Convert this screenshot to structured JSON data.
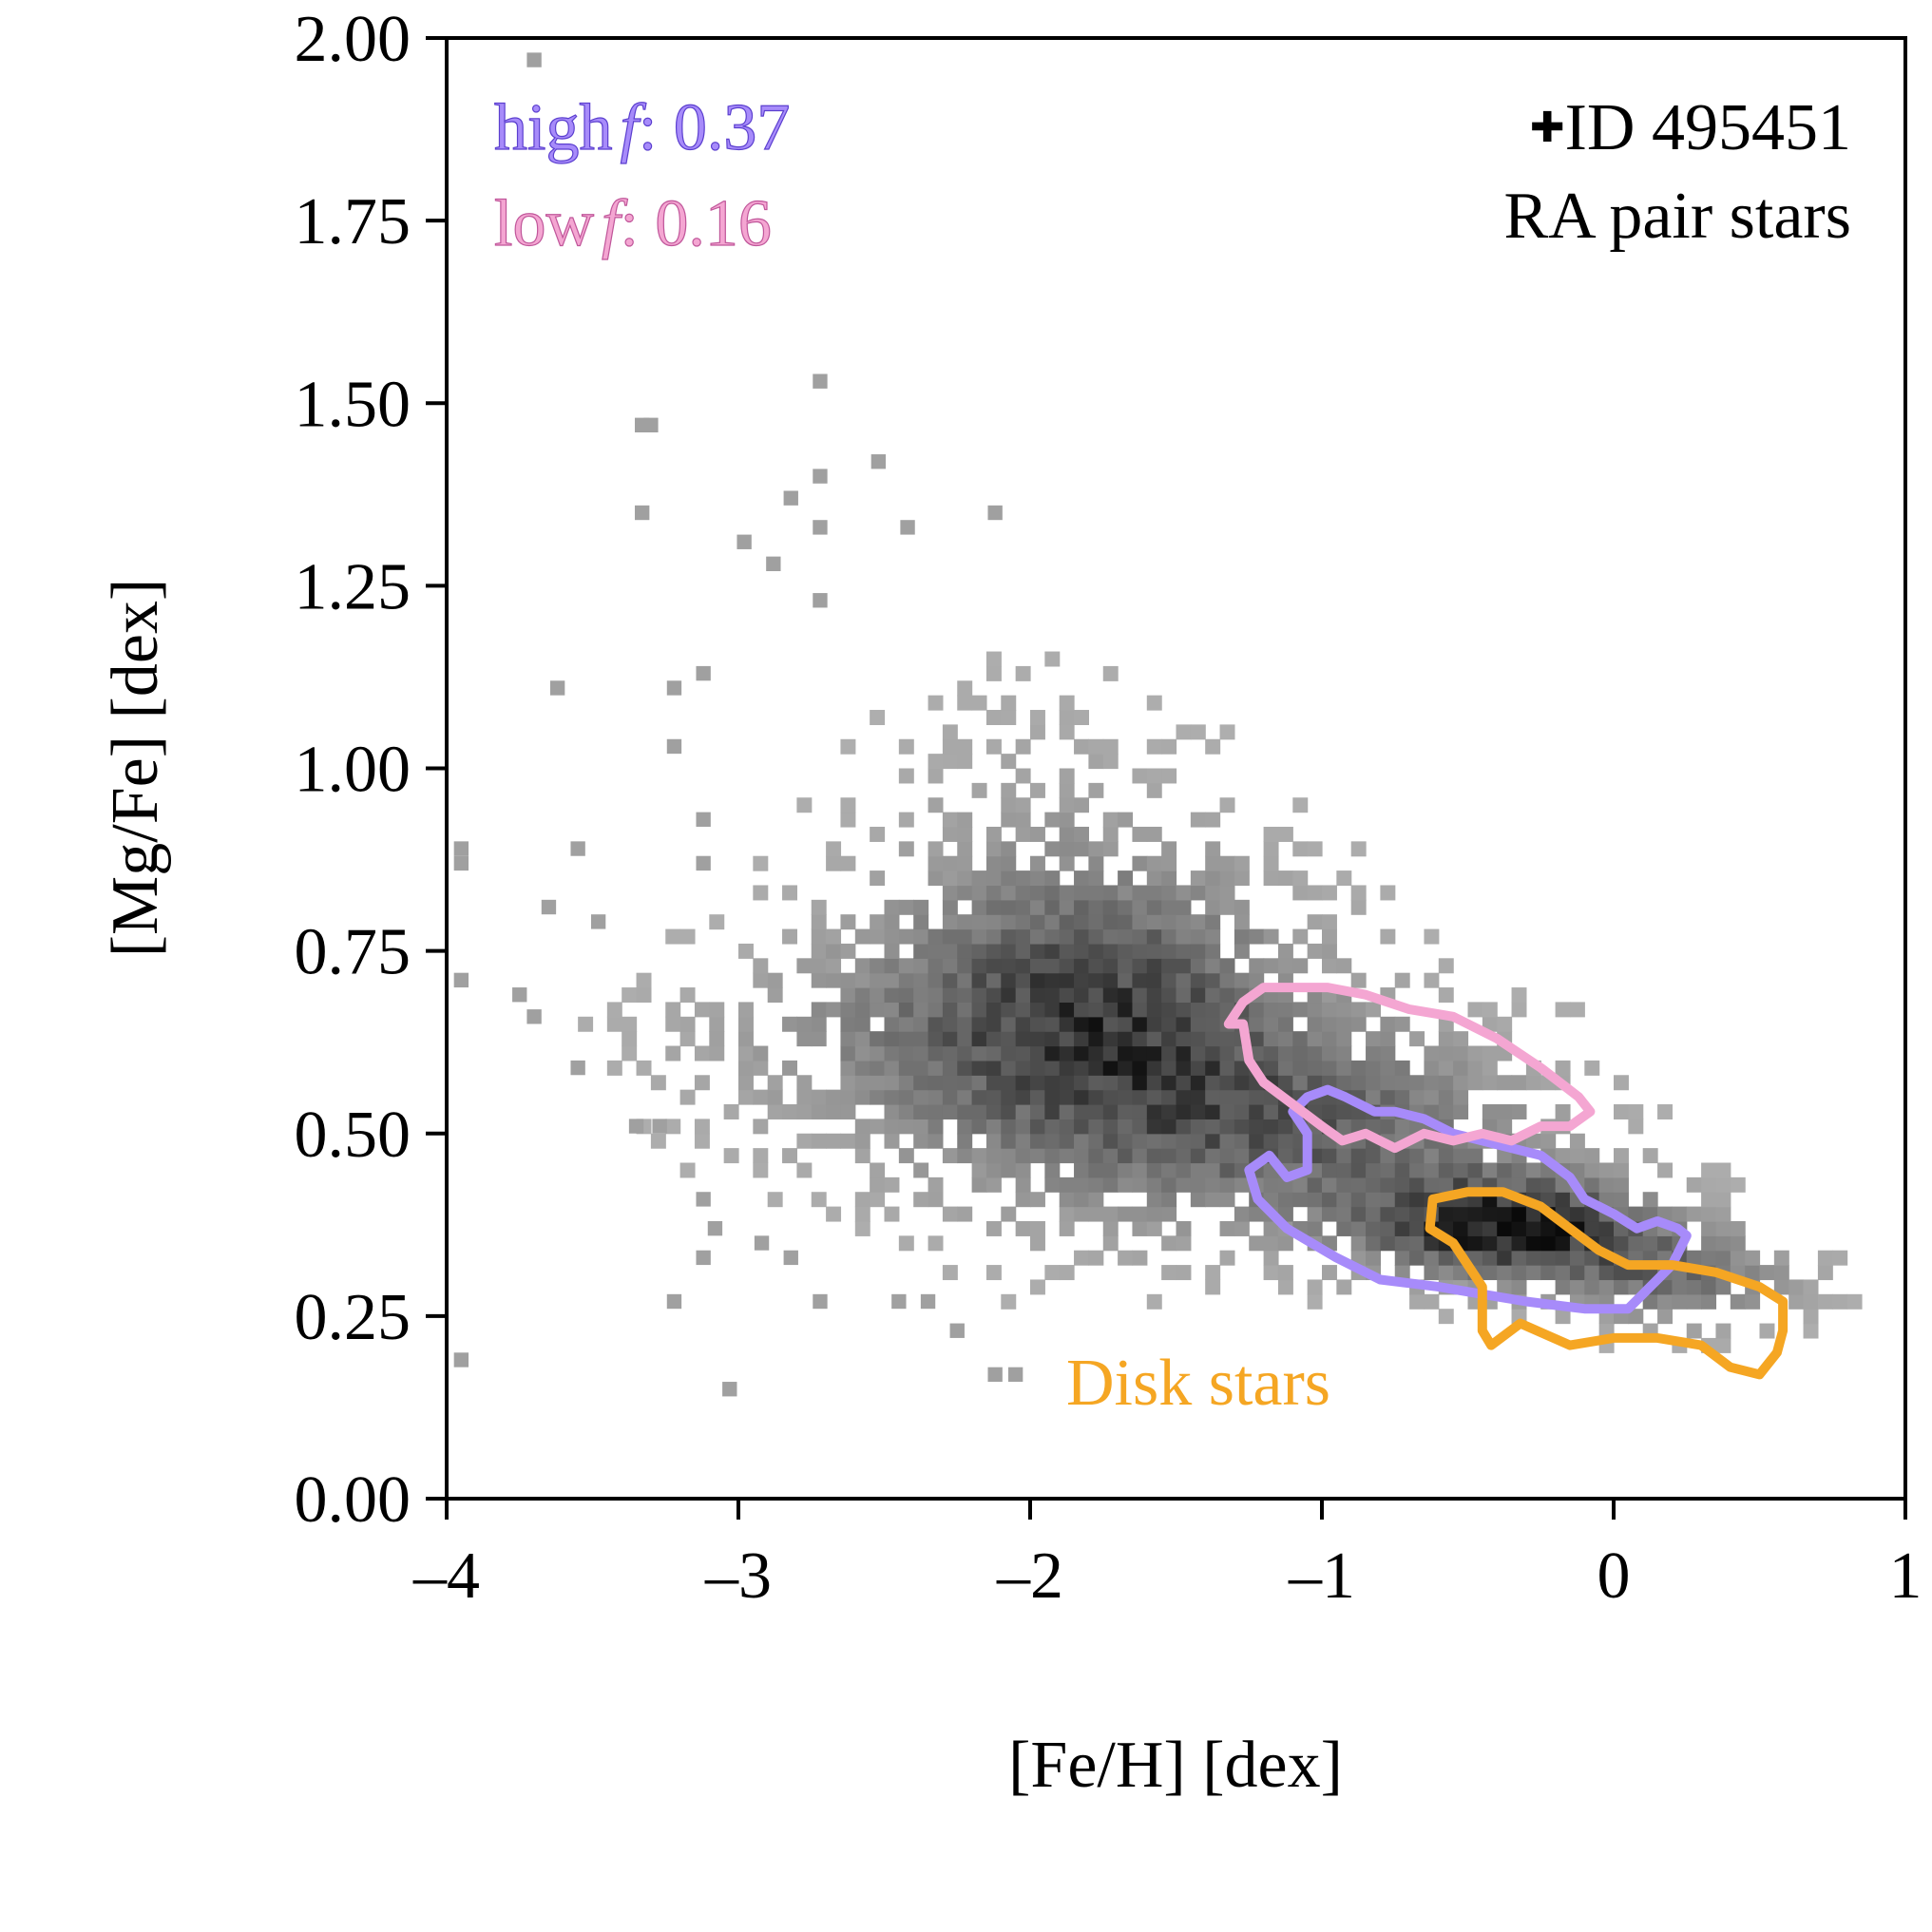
{
  "chart_data": {
    "type": "heatmap",
    "title": "",
    "xlabel": "[Fe/H] [dex]",
    "ylabel": "[Mg/Fe] [dex]",
    "xlim": [
      -4,
      1
    ],
    "ylim": [
      0.0,
      2.0
    ],
    "x_ticks": [
      -4,
      -3,
      -2,
      -1,
      0,
      1
    ],
    "x_tick_labels": [
      "–4",
      "–3",
      "–2",
      "–1",
      "0",
      "1"
    ],
    "y_ticks": [
      0.0,
      0.25,
      0.5,
      0.75,
      1.0,
      1.25,
      1.5,
      1.75,
      2.0
    ],
    "y_tick_labels": [
      "0.00",
      "0.25",
      "0.50",
      "0.75",
      "1.00",
      "1.25",
      "1.50",
      "1.75",
      "2.00"
    ],
    "grid": false,
    "histogram": {
      "description_series": "RA pair stars",
      "bin_width_feh": 0.05,
      "bin_width_mgfe": 0.02,
      "colormap": "greys",
      "density_peak": {
        "feh": -0.35,
        "mgfe": 0.36
      },
      "outlier_bins": [
        {
          "feh": -3.7,
          "mgfe": 1.97
        },
        {
          "feh": -2.72,
          "mgfe": 1.53
        },
        {
          "feh": -3.3,
          "mgfe": 1.47
        },
        {
          "feh": -3.33,
          "mgfe": 1.47
        },
        {
          "feh": -2.72,
          "mgfe": 1.4
        },
        {
          "feh": -2.52,
          "mgfe": 1.42
        },
        {
          "feh": -2.82,
          "mgfe": 1.37
        },
        {
          "feh": -3.33,
          "mgfe": 1.35
        },
        {
          "feh": -2.12,
          "mgfe": 1.35
        },
        {
          "feh": -2.72,
          "mgfe": 1.33
        },
        {
          "feh": -2.42,
          "mgfe": 1.33
        },
        {
          "feh": -2.98,
          "mgfe": 1.31
        },
        {
          "feh": -2.88,
          "mgfe": 1.28
        },
        {
          "feh": -2.72,
          "mgfe": 1.23
        },
        {
          "feh": -3.62,
          "mgfe": 1.11
        },
        {
          "feh": -3.22,
          "mgfe": 1.11
        },
        {
          "feh": -3.12,
          "mgfe": 1.13
        },
        {
          "feh": -3.22,
          "mgfe": 1.03
        },
        {
          "feh": -3.12,
          "mgfe": 0.93
        },
        {
          "feh": -3.95,
          "mgfe": 0.89
        },
        {
          "feh": -3.95,
          "mgfe": 0.87
        },
        {
          "feh": -3.55,
          "mgfe": 0.89
        },
        {
          "feh": -3.12,
          "mgfe": 0.87
        },
        {
          "feh": -3.65,
          "mgfe": 0.81
        },
        {
          "feh": -3.48,
          "mgfe": 0.79
        },
        {
          "feh": -3.95,
          "mgfe": 0.71
        },
        {
          "feh": -3.75,
          "mgfe": 0.69
        },
        {
          "feh": -3.7,
          "mgfe": 0.66
        },
        {
          "feh": -3.55,
          "mgfe": 0.59
        },
        {
          "feh": -3.35,
          "mgfe": 0.51
        },
        {
          "feh": -3.27,
          "mgfe": 0.51
        },
        {
          "feh": -3.12,
          "mgfe": 0.41
        },
        {
          "feh": -3.08,
          "mgfe": 0.37
        },
        {
          "feh": -3.12,
          "mgfe": 0.33
        },
        {
          "feh": -3.22,
          "mgfe": 0.27
        },
        {
          "feh": -2.72,
          "mgfe": 0.27
        },
        {
          "feh": -2.45,
          "mgfe": 0.27
        },
        {
          "feh": -2.35,
          "mgfe": 0.27
        },
        {
          "feh": -2.25,
          "mgfe": 0.23
        },
        {
          "feh": -3.03,
          "mgfe": 0.15
        },
        {
          "feh": -3.95,
          "mgfe": 0.19
        },
        {
          "feh": -2.12,
          "mgfe": 0.17
        },
        {
          "feh": -2.05,
          "mgfe": 0.17
        },
        {
          "feh": -2.92,
          "mgfe": 0.35
        },
        {
          "feh": -2.82,
          "mgfe": 0.33
        }
      ],
      "cloud_components": [
        {
          "center_feh": -1.8,
          "center_mgfe": 0.65,
          "spread_feh": 0.55,
          "spread_mgfe": 0.16,
          "weight": 0.9
        },
        {
          "center_feh": -0.9,
          "center_mgfe": 0.5,
          "spread_feh": 0.55,
          "spread_mgfe": 0.1,
          "weight": 0.55
        },
        {
          "center_feh": -0.35,
          "center_mgfe": 0.37,
          "spread_feh": 0.35,
          "spread_mgfe": 0.05,
          "weight": 1.0
        },
        {
          "center_feh": 0.25,
          "center_mgfe": 0.3,
          "spread_feh": 0.3,
          "spread_mgfe": 0.05,
          "weight": 0.55
        },
        {
          "center_feh": -2.8,
          "center_mgfe": 0.62,
          "spread_feh": 0.5,
          "spread_mgfe": 0.1,
          "weight": 0.18
        },
        {
          "center_feh": -2.0,
          "center_mgfe": 0.98,
          "spread_feh": 0.4,
          "spread_mgfe": 0.15,
          "weight": 0.12
        }
      ]
    },
    "series": [
      {
        "name": "high f",
        "color": "#a78bfa",
        "type": "contour",
        "points": [
          [
            -1.25,
            0.45
          ],
          [
            -1.22,
            0.41
          ],
          [
            -1.12,
            0.37
          ],
          [
            -0.95,
            0.33
          ],
          [
            -0.8,
            0.3
          ],
          [
            -0.6,
            0.29
          ],
          [
            -0.45,
            0.28
          ],
          [
            -0.3,
            0.27
          ],
          [
            -0.1,
            0.26
          ],
          [
            0.05,
            0.26
          ],
          [
            0.1,
            0.28
          ],
          [
            0.2,
            0.32
          ],
          [
            0.25,
            0.36
          ],
          [
            0.22,
            0.37
          ],
          [
            0.15,
            0.38
          ],
          [
            0.08,
            0.37
          ],
          [
            0.0,
            0.39
          ],
          [
            -0.1,
            0.41
          ],
          [
            -0.15,
            0.44
          ],
          [
            -0.25,
            0.47
          ],
          [
            -0.35,
            0.48
          ],
          [
            -0.45,
            0.49
          ],
          [
            -0.55,
            0.5
          ],
          [
            -0.65,
            0.52
          ],
          [
            -0.75,
            0.53
          ],
          [
            -0.82,
            0.53
          ],
          [
            -0.92,
            0.55
          ],
          [
            -0.98,
            0.56
          ],
          [
            -1.05,
            0.55
          ],
          [
            -1.1,
            0.53
          ],
          [
            -1.05,
            0.5
          ],
          [
            -1.05,
            0.45
          ],
          [
            -1.12,
            0.44
          ],
          [
            -1.18,
            0.47
          ],
          [
            -1.25,
            0.45
          ]
        ]
      },
      {
        "name": "low f",
        "color": "#f4a6d2",
        "type": "contour",
        "points": [
          [
            -1.32,
            0.65
          ],
          [
            -1.27,
            0.65
          ],
          [
            -1.25,
            0.6
          ],
          [
            -1.2,
            0.57
          ],
          [
            -1.1,
            0.54
          ],
          [
            -1.0,
            0.51
          ],
          [
            -0.93,
            0.49
          ],
          [
            -0.85,
            0.5
          ],
          [
            -0.75,
            0.48
          ],
          [
            -0.65,
            0.5
          ],
          [
            -0.55,
            0.49
          ],
          [
            -0.45,
            0.5
          ],
          [
            -0.35,
            0.49
          ],
          [
            -0.25,
            0.51
          ],
          [
            -0.15,
            0.51
          ],
          [
            -0.08,
            0.53
          ],
          [
            -0.12,
            0.55
          ],
          [
            -0.25,
            0.59
          ],
          [
            -0.4,
            0.63
          ],
          [
            -0.55,
            0.66
          ],
          [
            -0.7,
            0.67
          ],
          [
            -0.85,
            0.69
          ],
          [
            -0.98,
            0.7
          ],
          [
            -1.05,
            0.7
          ],
          [
            -1.12,
            0.7
          ],
          [
            -1.2,
            0.7
          ],
          [
            -1.27,
            0.68
          ],
          [
            -1.32,
            0.65
          ]
        ]
      },
      {
        "name": "Disk stars",
        "color": "#f5a623",
        "type": "contour",
        "points": [
          [
            -0.62,
            0.41
          ],
          [
            -0.5,
            0.42
          ],
          [
            -0.38,
            0.42
          ],
          [
            -0.25,
            0.4
          ],
          [
            -0.15,
            0.37
          ],
          [
            -0.05,
            0.34
          ],
          [
            0.05,
            0.32
          ],
          [
            0.2,
            0.32
          ],
          [
            0.35,
            0.31
          ],
          [
            0.5,
            0.29
          ],
          [
            0.58,
            0.27
          ],
          [
            0.58,
            0.23
          ],
          [
            0.56,
            0.2
          ],
          [
            0.5,
            0.17
          ],
          [
            0.4,
            0.18
          ],
          [
            0.3,
            0.21
          ],
          [
            0.15,
            0.22
          ],
          [
            0.0,
            0.22
          ],
          [
            -0.15,
            0.21
          ],
          [
            -0.32,
            0.24
          ],
          [
            -0.42,
            0.21
          ],
          [
            -0.45,
            0.23
          ],
          [
            -0.45,
            0.29
          ],
          [
            -0.55,
            0.35
          ],
          [
            -0.63,
            0.37
          ],
          [
            -0.62,
            0.41
          ]
        ]
      }
    ],
    "annotations": {
      "high_label": "high",
      "high_italic": "f",
      "high_value": ": 0.37",
      "low_label": "low",
      "low_italic": "f",
      "low_value": ": 0.16",
      "id_marker": "✚",
      "id_text": "ID 495451",
      "sample_label": "RA pair stars",
      "disk_label": "Disk stars"
    },
    "colors": {
      "high_f": "#a78bfa",
      "low_f": "#f4a6d2",
      "disk": "#f5a623",
      "axes": "#000000"
    }
  }
}
